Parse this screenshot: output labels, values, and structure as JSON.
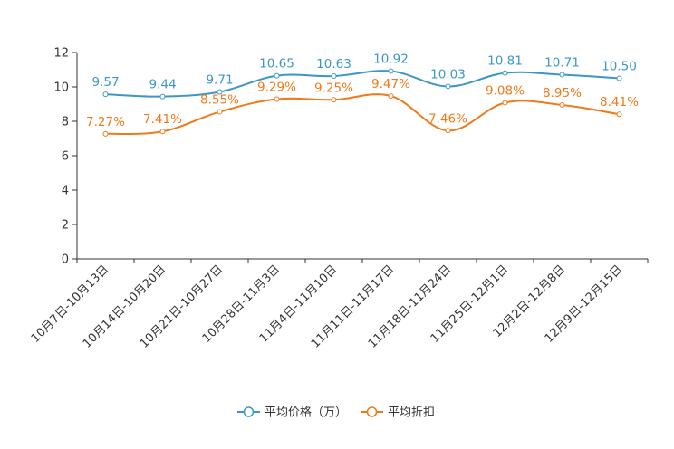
{
  "chart_data": {
    "type": "line",
    "categories": [
      "10月7日-10月13日",
      "10月14日-10月20日",
      "10月21日-10月27日",
      "10月28日-11月3日",
      "11月4日-11月10日",
      "11月11日-11月17日",
      "11月18日-11月24日",
      "11月25日-12月1日",
      "12月2日-12月8日",
      "12月9日-12月15日"
    ],
    "series": [
      {
        "name": "平均价格（万）",
        "color": "#3b97c8",
        "values": [
          9.57,
          9.44,
          9.71,
          10.65,
          10.63,
          10.92,
          10.03,
          10.81,
          10.71,
          10.5
        ],
        "labels": [
          "9.57",
          "9.44",
          "9.71",
          "10.65",
          "10.63",
          "10.92",
          "10.03",
          "10.81",
          "10.71",
          "10.50"
        ]
      },
      {
        "name": "平均折扣",
        "color": "#f07a1a",
        "values": [
          7.27,
          7.41,
          8.55,
          9.29,
          9.25,
          9.47,
          7.46,
          9.08,
          8.95,
          8.41
        ],
        "labels": [
          "7.27%",
          "7.41%",
          "8.55%",
          "9.29%",
          "9.25%",
          "9.47%",
          "7.46%",
          "9.08%",
          "8.95%",
          "8.41%"
        ]
      }
    ],
    "yticks": [
      "0",
      "2",
      "4",
      "6",
      "8",
      "10",
      "12"
    ],
    "ylim": [
      0,
      12
    ],
    "title": "",
    "xlabel": "",
    "ylabel": "",
    "legend_position": "bottom-center",
    "grid": false
  }
}
